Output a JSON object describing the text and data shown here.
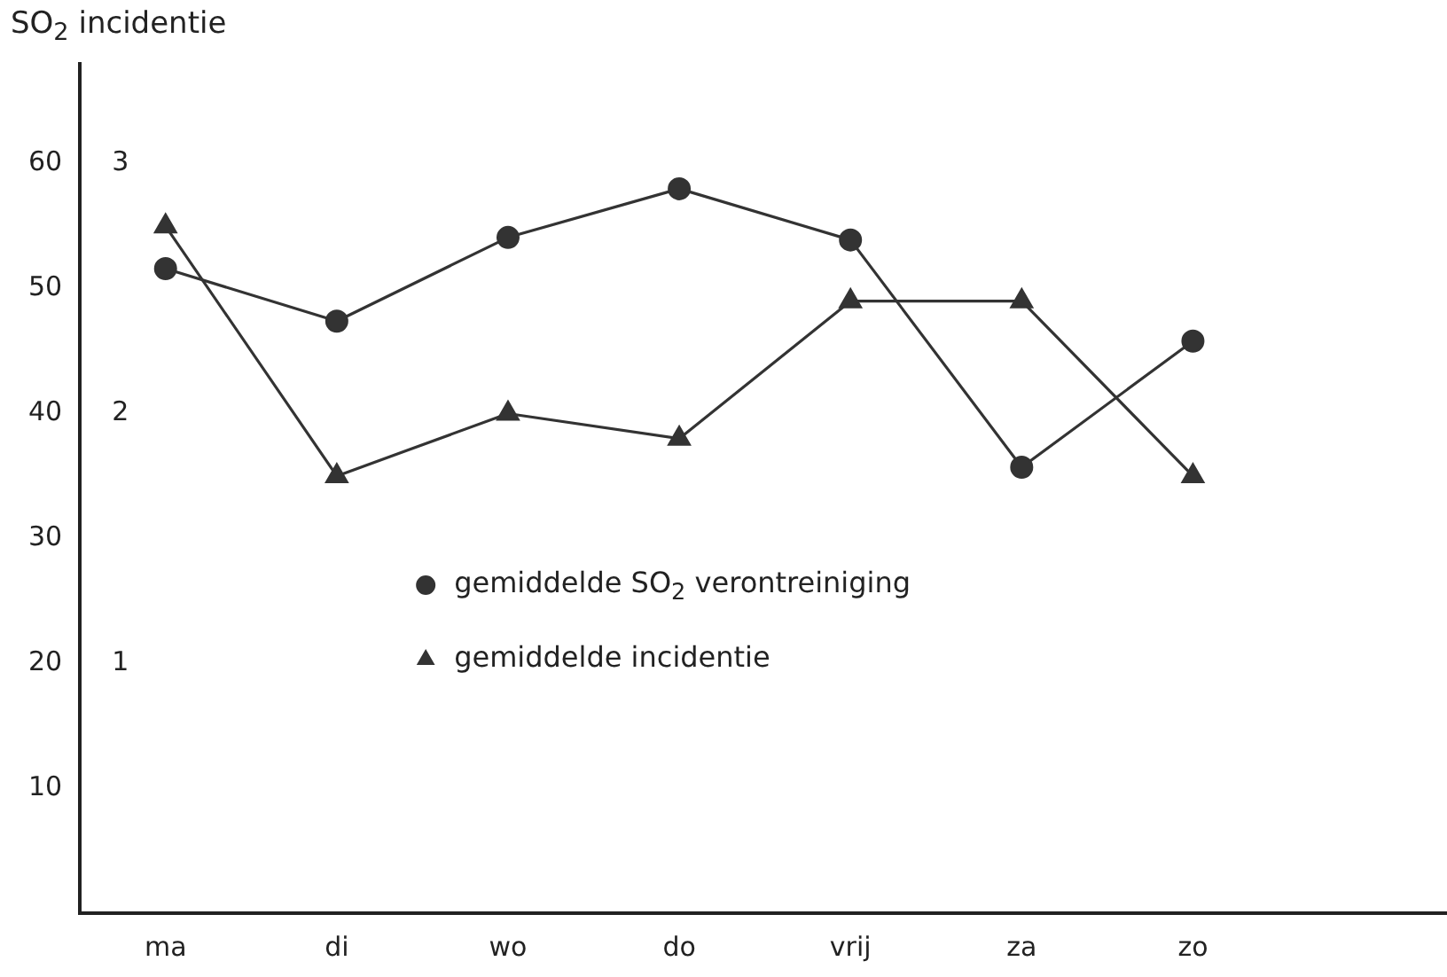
{
  "chart_data": {
    "type": "line",
    "annotations": [
      "SO$_{2}$ incidentie"
    ],
    "categories": [
      "ma",
      "di",
      "wo",
      "do",
      "vrij",
      "za",
      "zo"
    ],
    "series": [
      {
        "name": "gemiddelde SO$_{2}$ verontreiniging",
        "color": "#333333",
        "marker": "circle",
        "values": [
          51.6,
          47.4,
          54.1,
          58.0,
          53.9,
          35.7,
          45.8
        ]
      },
      {
        "name": "gemiddelde incidentie",
        "color": "#333333",
        "marker": "triangle",
        "axis": "y2",
        "values": [
          2.75,
          1.75,
          2.0,
          1.9,
          2.45,
          2.45,
          1.75
        ]
      }
    ],
    "ylim": [
      0,
      68
    ],
    "yticks": [
      10,
      20,
      30,
      40,
      50,
      60
    ],
    "y2lim": [
      0,
      3.4
    ],
    "y2ticks": [
      1,
      2,
      3
    ],
    "legend": "bottom left",
    "grid": false,
    "line_style": "solid"
  }
}
